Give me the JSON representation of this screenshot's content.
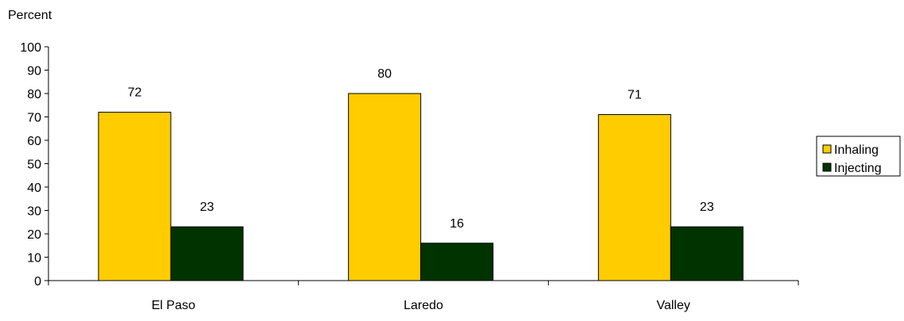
{
  "chart_data": {
    "type": "bar",
    "ylabel": "Percent",
    "xlabel": "",
    "title": "",
    "categories": [
      "El Paso",
      "Laredo",
      "Valley"
    ],
    "series": [
      {
        "name": "Inhaling",
        "values": [
          72,
          80,
          71
        ],
        "color": "#ffcc00"
      },
      {
        "name": "Injecting",
        "values": [
          23,
          16,
          23
        ],
        "color": "#003300"
      }
    ],
    "data_labels": [
      [
        "72",
        "80",
        "71"
      ],
      [
        "23",
        "16",
        "23"
      ]
    ],
    "ylim": [
      0,
      100
    ],
    "yticks": [
      "0",
      "10",
      "20",
      "30",
      "40",
      "50",
      "60",
      "70",
      "80",
      "90",
      "100"
    ],
    "grid": false,
    "legend_position": "right"
  }
}
